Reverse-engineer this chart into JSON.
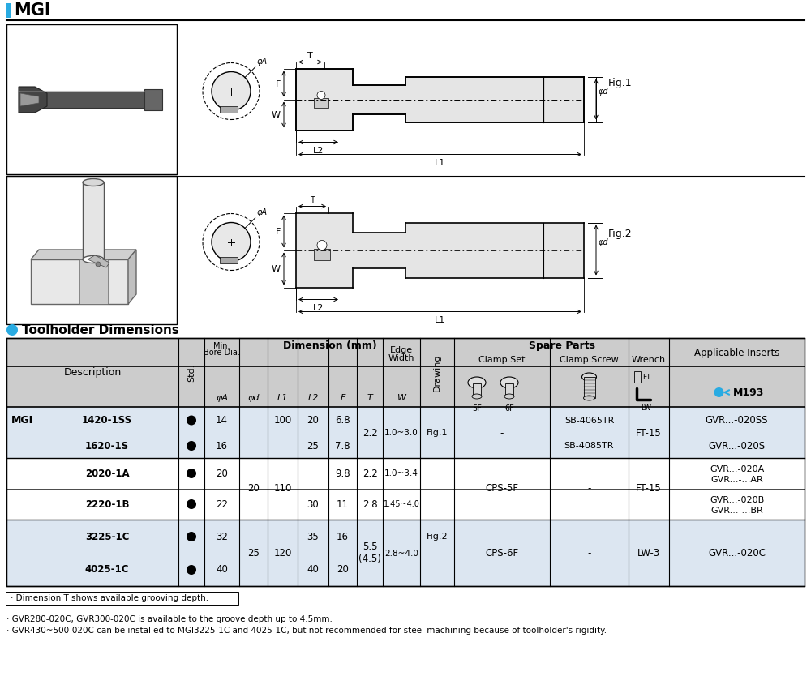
{
  "title": "MGI",
  "title_bg_color": "#29ABE2",
  "section_title": "Toolholder Dimensions",
  "section_dot_color": "#29ABE2",
  "header_bg": "#CCCCCC",
  "light_bg": "#DCE6F1",
  "notes": [
    "· Dimension T shows available grooving depth.",
    "· GVR280-020C, GVR300-020C is available to the groove depth up to 4.5mm.",
    "· GVR430~500-020C can be installed to MGI3225-1C and 4025-1C, but not recommended for steel machining because of toolholder's rigidity."
  ],
  "names": [
    "1420-1SS",
    "1620-1S",
    "2020-1A",
    "2220-1B",
    "3225-1C",
    "4025-1C"
  ],
  "phiA": [
    "14",
    "16",
    "20",
    "22",
    "32",
    "40"
  ],
  "F_vals": [
    "6.8",
    "7.8",
    "9.8",
    "11",
    "16",
    "20"
  ]
}
